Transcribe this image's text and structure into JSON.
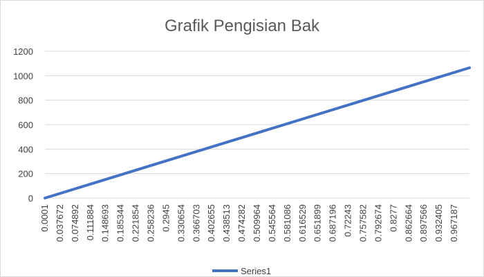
{
  "chart_data": {
    "type": "line",
    "title": "Grafik Pengisian Bak",
    "xlabel": "",
    "ylabel": "",
    "ylim": [
      0,
      1200
    ],
    "y_ticks": [
      0,
      200,
      400,
      600,
      800,
      1000,
      1200
    ],
    "grid": true,
    "legend_position": "bottom",
    "categories": [
      "0.0001",
      "0.037672",
      "0.074892",
      "0.111884",
      "0.148693",
      "0.185344",
      "0.221854",
      "0.258236",
      "0.2945",
      "0.330654",
      "0.366703",
      "0.402655",
      "0.438513",
      "0.474282",
      "0.509964",
      "0.545564",
      "0.581086",
      "0.616529",
      "0.651899",
      "0.687196",
      "0.72243",
      "0.757582",
      "0.792674",
      "0.8277",
      "0.862664",
      "0.897566",
      "0.932405",
      "0.967187"
    ],
    "series": [
      {
        "name": "Series1",
        "color": "#4472c4",
        "x_start": 0.0001,
        "x_end": 1.0,
        "y_start": 0,
        "y_end": 1065
      }
    ]
  }
}
